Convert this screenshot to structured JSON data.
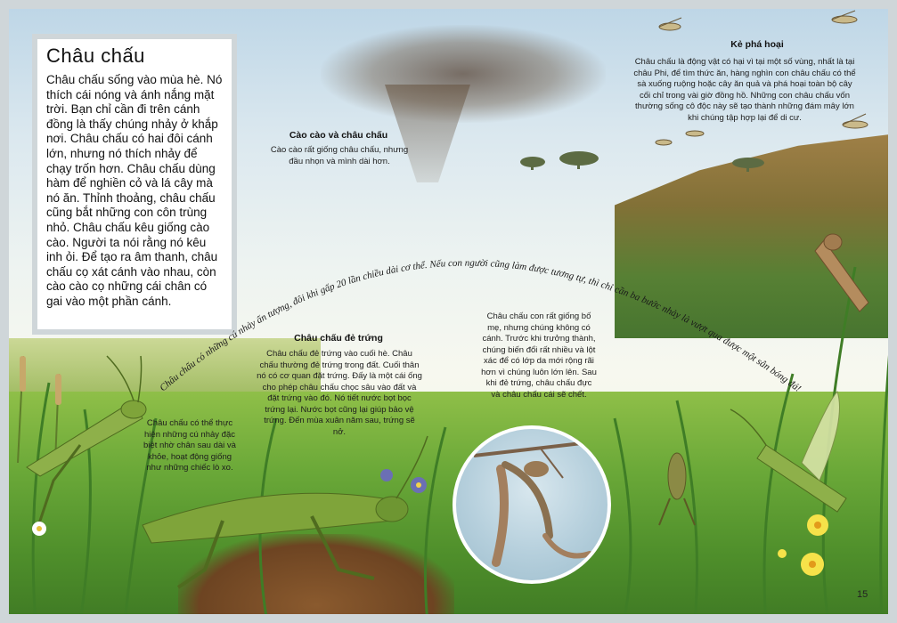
{
  "intro": {
    "title": "Châu chấu",
    "body": "Châu chấu sống vào mùa hè. Nó thích cái nóng và ánh nắng mặt trời. Bạn chỉ cần đi trên cánh đồng là thấy chúng nhảy ở khắp nơi. Châu chấu có hai đôi cánh lớn, nhưng nó thích nhảy để chạy trốn hơn. Châu chấu dùng hàm để nghiền cỏ và lá cây mà nó ăn. Thỉnh thoảng, châu chấu cũng bắt những con côn trùng nhỏ. Châu chấu kêu giống cào cào. Người ta nói rằng nó kêu inh ỏi. Để tạo ra âm thanh, châu chấu cọ xát cánh vào nhau, còn cào cào cọ những cái chân có gai vào một phần cánh."
  },
  "destroyer": {
    "title": "Kẻ phá hoại",
    "body": "Châu chấu là động vật có hại vì tại một số vùng, nhất là tại châu Phi, để tìm thức ăn, hàng nghìn con châu chấu có thể sà xuống ruộng hoặc cây ăn quả và phá hoại toàn bộ cây cối chỉ trong vài giờ đồng hồ. Những con châu chấu vốn thường sống cô độc này sẽ tạo thành những đám mây lớn khi chúng tập hợp lại để di cư."
  },
  "cricket_vs": {
    "title": "Cào cào và châu chấu",
    "body": "Cào cào rất giống châu chấu, nhưng đầu nhọn và mình dài hơn."
  },
  "arc_text": "Châu chấu có những cú nhảy ấn tượng, đôi khi gấp 20 lần chiều dài cơ thể. Nếu con người cũng làm được tương tự, thì chỉ cần ba bước nhảy là vượt qua được một sân bóng đá!",
  "laying": {
    "title": "Châu chấu đẻ trứng",
    "body": "Châu chấu đẻ trứng vào cuối hè. Châu chấu thường đẻ trứng trong đất. Cuối thân nó có cơ quan đặt trứng. Đấy là một cái ống cho phép châu chấu chọc sâu vào đất và đặt trứng vào đó. Nó tiết nước bọt bọc trứng lại. Nước bọt cũng lại giúp bảo vệ trứng. Đến mùa xuân năm sau, trứng sẽ nở."
  },
  "young": {
    "body": "Châu chấu con rất giống bố mẹ, nhưng chúng không có cánh. Trước khi trưởng thành, chúng biến đổi rất nhiều và lột xác để có lớp da mới rộng rãi hơn vì chúng luôn lớn lên. Sau khi đẻ trứng, châu chấu đực và châu chấu cái sẽ chết."
  },
  "jump": {
    "body": "Châu chấu có thể thực hiện những cú nhảy đặc biệt nhờ chân sau dài và khỏe, hoạt động giống như những chiếc lò xo."
  },
  "page_number": "15",
  "colors": {
    "frame": "#cfd6d9",
    "grass": "#6aa838",
    "grasshopper": "#7fa43a",
    "flower": "#f6e24a"
  }
}
